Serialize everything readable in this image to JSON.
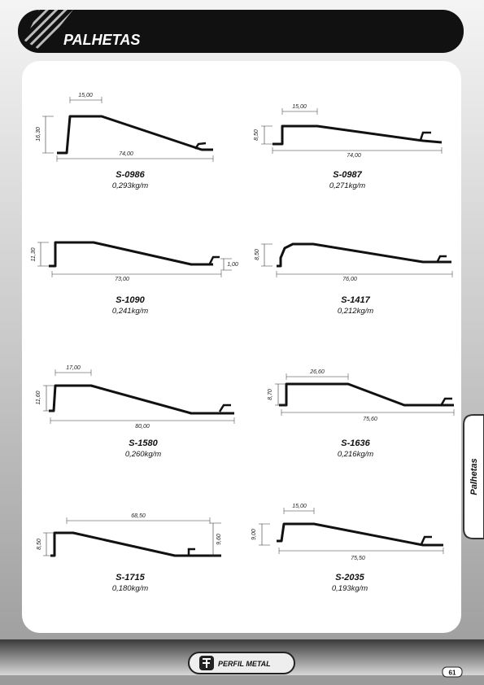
{
  "header": {
    "title": "PALHETAS"
  },
  "profiles": [
    {
      "code": "S-0986",
      "weight": "0,293kg/m",
      "dimensions": [
        "15,00",
        "16,30",
        "74,00"
      ]
    },
    {
      "code": "S-0987",
      "weight": "0,271kg/m",
      "dimensions": [
        "15,00",
        "8,50",
        "74,00"
      ]
    },
    {
      "code": "S-1090",
      "weight": "0,241kg/m",
      "dimensions": [
        "11,30",
        "73,00",
        "1,00"
      ]
    },
    {
      "code": "S-1417",
      "weight": "0,212kg/m",
      "dimensions": [
        "8,50",
        "76,00"
      ]
    },
    {
      "code": "S-1580",
      "weight": "0,260kg/m",
      "dimensions": [
        "17,00",
        "11,60",
        "80,00"
      ]
    },
    {
      "code": "S-1636",
      "weight": "0,216kg/m",
      "dimensions": [
        "26,60",
        "8,70",
        "75,60"
      ]
    },
    {
      "code": "S-1715",
      "weight": "0,180kg/m",
      "dimensions": [
        "68,50",
        "8,50",
        "9,60"
      ]
    },
    {
      "code": "S-2035",
      "weight": "0,193kg/m",
      "dimensions": [
        "15,00",
        "9,00",
        "75,50"
      ]
    }
  ],
  "side_tab": "Palhetas",
  "footer": {
    "brand": "PERFIL METAL",
    "page": "61"
  }
}
